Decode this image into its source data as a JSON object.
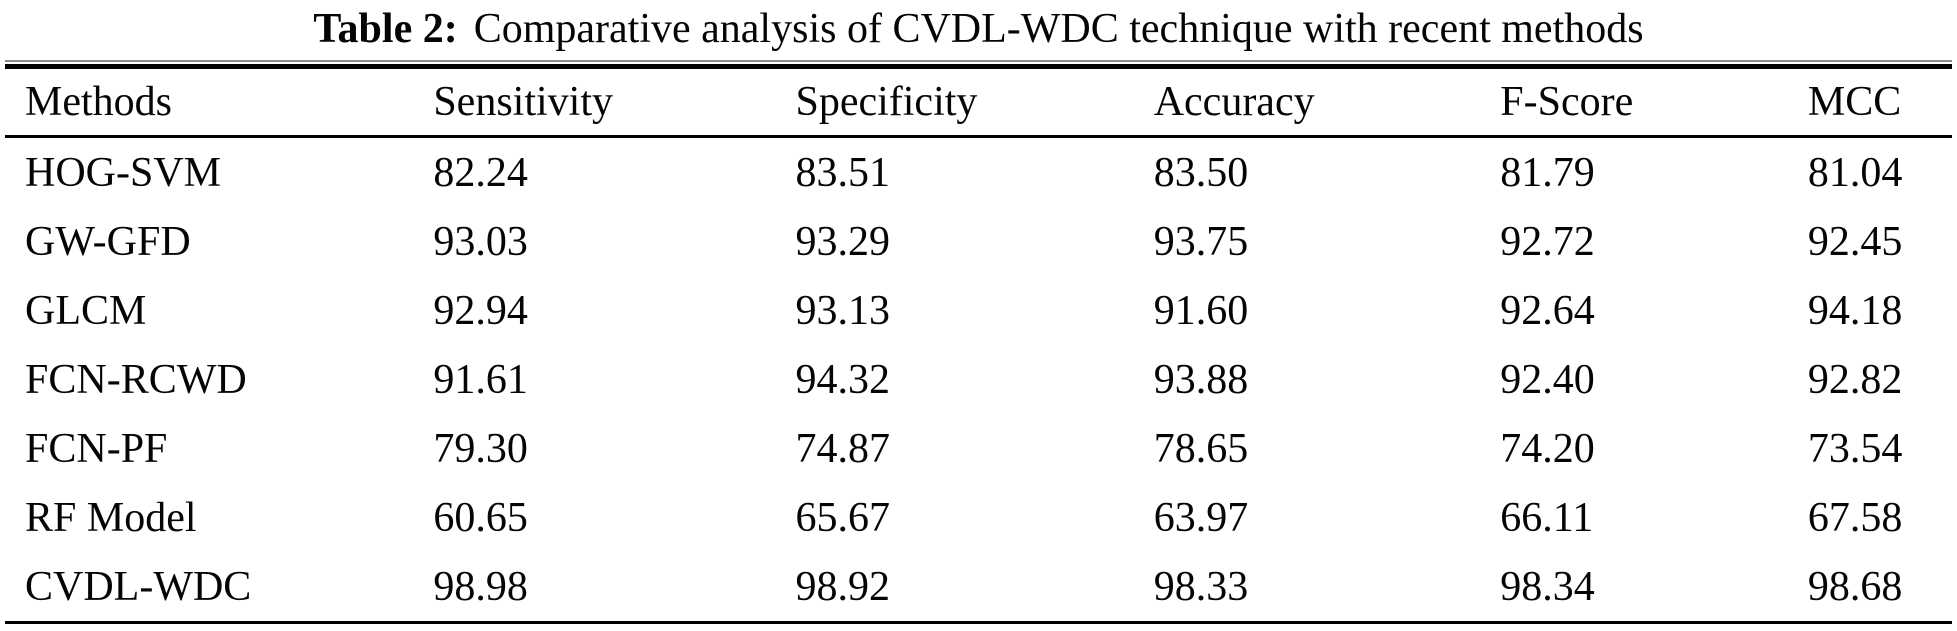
{
  "caption": {
    "label": "Table 2:",
    "text": "Comparative analysis of CVDL-WDC technique with recent methods"
  },
  "table": {
    "headers": [
      "Methods",
      "Sensitivity",
      "Specificity",
      "Accuracy",
      "F-Score",
      "MCC"
    ],
    "rows": [
      {
        "cells": [
          "HOG-SVM",
          "82.24",
          "83.51",
          "83.50",
          "81.79",
          "81.04"
        ]
      },
      {
        "cells": [
          "GW-GFD",
          "93.03",
          "93.29",
          "93.75",
          "92.72",
          "92.45"
        ]
      },
      {
        "cells": [
          "GLCM",
          "92.94",
          "93.13",
          "91.60",
          "92.64",
          "94.18"
        ]
      },
      {
        "cells": [
          "FCN-RCWD",
          "91.61",
          "94.32",
          "93.88",
          "92.40",
          "92.82"
        ]
      },
      {
        "cells": [
          "FCN-PF",
          "79.30",
          "74.87",
          "78.65",
          "74.20",
          "73.54"
        ]
      },
      {
        "cells": [
          "RF Model",
          "60.65",
          "65.67",
          "63.97",
          "66.11",
          "67.58"
        ]
      },
      {
        "cells": [
          "CVDL-WDC",
          "98.98",
          "98.92",
          "98.33",
          "98.34",
          "98.68"
        ]
      }
    ]
  },
  "colors": {
    "text": "#050505",
    "rule": "#000000",
    "rule_shadow": "#8a8a8a",
    "background": "#ffffff"
  },
  "chart_data": {
    "type": "table",
    "title": "Table 2: Comparative analysis of CVDL-WDC technique with recent methods",
    "columns": [
      "Methods",
      "Sensitivity",
      "Specificity",
      "Accuracy",
      "F-Score",
      "MCC"
    ],
    "rows": [
      [
        "HOG-SVM",
        82.24,
        83.51,
        83.5,
        81.79,
        81.04
      ],
      [
        "GW-GFD",
        93.03,
        93.29,
        93.75,
        92.72,
        92.45
      ],
      [
        "GLCM",
        92.94,
        93.13,
        91.6,
        92.64,
        94.18
      ],
      [
        "FCN-RCWD",
        91.61,
        94.32,
        93.88,
        92.4,
        92.82
      ],
      [
        "FCN-PF",
        79.3,
        74.87,
        78.65,
        74.2,
        73.54
      ],
      [
        "RF Model",
        60.65,
        65.67,
        63.97,
        66.11,
        67.58
      ],
      [
        "CVDL-WDC",
        98.98,
        98.92,
        98.33,
        98.34,
        98.68
      ]
    ]
  }
}
